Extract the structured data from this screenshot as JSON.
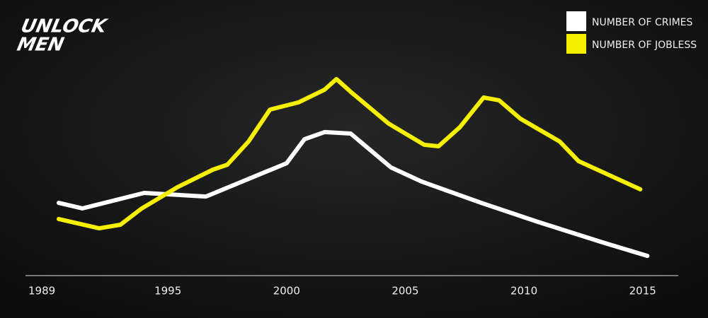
{
  "brand": {
    "line1": "UNLOCK",
    "line2": "MEN"
  },
  "chart_data": {
    "type": "line",
    "xlim": [
      1989,
      2016.5
    ],
    "xticks": [
      1989,
      1995,
      2000,
      2005,
      2010,
      2015
    ],
    "ylim": [
      0,
      100
    ],
    "grid": false,
    "legend": "top-right",
    "series": [
      {
        "name": "NUMBER OF CRIMES",
        "color": "#ffffff",
        "x": [
          1990.4,
          1991.4,
          1994.0,
          1996.6,
          2000.0,
          2000.75,
          2001.6,
          2002.7,
          2004.4,
          2005.7,
          2008.2,
          2010.6,
          2013.3,
          2015.2
        ],
        "values": [
          34.3,
          31.7,
          39,
          37.3,
          53,
          64.3,
          67.7,
          67,
          51,
          44.3,
          34.3,
          25.3,
          15.7,
          9.3
        ]
      },
      {
        "name": "NUMBER OF JOBLESS",
        "color": "#f5f000",
        "x": [
          1990.4,
          1992.1,
          1993.0,
          1993.9,
          1995.4,
          1996.9,
          1997.5,
          1998.4,
          1999.3,
          2000.5,
          2001.6,
          2002.1,
          2002.7,
          2004.3,
          2005.8,
          2006.4,
          2007.3,
          2008.3,
          2008.95,
          2009.85,
          2011.5,
          2012.3,
          2014.9
        ],
        "values": [
          26.7,
          22.3,
          24,
          31.7,
          41.7,
          50,
          52.3,
          63.3,
          78.3,
          81.7,
          87.7,
          92.7,
          86.7,
          71.7,
          61.7,
          61,
          70,
          84,
          82.7,
          74,
          63.3,
          54,
          40.7
        ]
      }
    ]
  }
}
